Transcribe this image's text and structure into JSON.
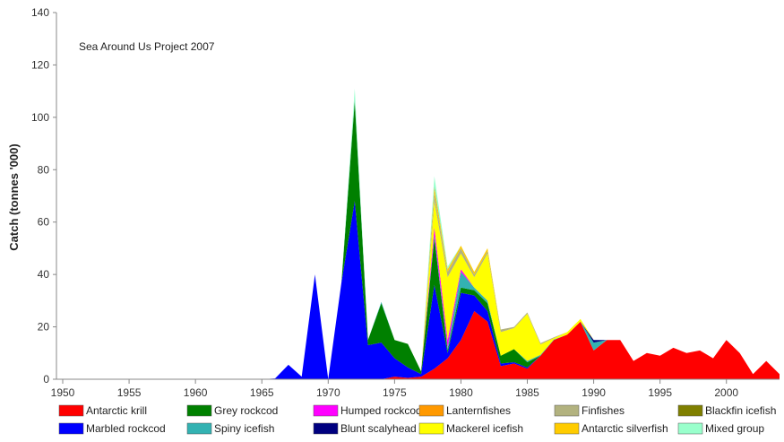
{
  "chart_data": {
    "type": "area",
    "stacked": true,
    "annotation": "Sea Around Us Project 2007",
    "xlabel": "",
    "ylabel": "Catch (tonnes '000)",
    "xlim": [
      1950,
      2004
    ],
    "ylim": [
      0,
      140
    ],
    "xticks": [
      1950,
      1955,
      1960,
      1965,
      1970,
      1975,
      1980,
      1985,
      1990,
      1995,
      2000
    ],
    "yticks": [
      0,
      20,
      40,
      60,
      80,
      100,
      120,
      140
    ],
    "grid": false,
    "legend_position": "bottom",
    "x": [
      1950,
      1951,
      1952,
      1953,
      1954,
      1955,
      1956,
      1957,
      1958,
      1959,
      1960,
      1961,
      1962,
      1963,
      1964,
      1965,
      1966,
      1967,
      1968,
      1969,
      1970,
      1971,
      1972,
      1973,
      1974,
      1975,
      1976,
      1977,
      1978,
      1979,
      1980,
      1981,
      1982,
      1983,
      1984,
      1985,
      1986,
      1987,
      1988,
      1989,
      1990,
      1991,
      1992,
      1993,
      1994,
      1995,
      1996,
      1997,
      1998,
      1999,
      2000,
      2001,
      2002,
      2003,
      2004
    ],
    "series": [
      {
        "name": "Antarctic krill",
        "color": "#ff0000",
        "values": [
          0,
          0,
          0,
          0,
          0,
          0,
          0,
          0,
          0,
          0,
          0,
          0,
          0,
          0,
          0,
          0,
          0,
          0,
          0,
          0,
          0,
          0,
          0,
          0,
          0,
          1,
          0.5,
          1,
          4,
          8,
          15,
          26,
          22,
          5,
          6,
          4,
          9,
          15,
          17,
          22,
          11,
          15,
          15,
          7,
          10,
          9,
          12,
          10,
          11,
          8,
          15,
          10,
          2,
          7,
          2
        ]
      },
      {
        "name": "Marbled rockcod",
        "color": "#0000ff",
        "values": [
          0,
          0,
          0,
          0,
          0,
          0,
          0,
          0,
          0,
          0,
          0,
          0,
          0,
          0,
          0,
          0,
          0.3,
          5.5,
          1,
          40,
          0,
          37,
          68,
          13,
          14,
          7,
          4,
          1,
          32,
          2,
          18,
          6,
          4,
          1,
          0.5,
          0.5,
          0,
          0,
          0,
          0,
          0,
          0,
          0,
          0,
          0,
          0,
          0,
          0,
          0,
          0,
          0,
          0,
          0,
          0,
          0
        ]
      },
      {
        "name": "Grey rockcod",
        "color": "#008000",
        "values": [
          0,
          0,
          0,
          0,
          0,
          0,
          0,
          0,
          0,
          0,
          0,
          0,
          0,
          0,
          0,
          0,
          0,
          0,
          0,
          0,
          0,
          0,
          38,
          2,
          15,
          7,
          9,
          1,
          18,
          1,
          2,
          2,
          3,
          3,
          5,
          2,
          0,
          0,
          0,
          0,
          0,
          0,
          0,
          0,
          0,
          0,
          0,
          0,
          0,
          0,
          0,
          0,
          0,
          0,
          0
        ]
      },
      {
        "name": "Spiny icefish",
        "color": "#33b2b2",
        "values": [
          0,
          0,
          0,
          0,
          0,
          0,
          0,
          0,
          0,
          0,
          0,
          0,
          0,
          0,
          0,
          0,
          0,
          0,
          0,
          0,
          0,
          0,
          0.5,
          0,
          0.5,
          0,
          0,
          0,
          1,
          1,
          6,
          1,
          1,
          0,
          0,
          0.5,
          0.3,
          0.2,
          0,
          0,
          3,
          0,
          0,
          0,
          0,
          0,
          0,
          0,
          0,
          0,
          0,
          0,
          0,
          0,
          0
        ]
      },
      {
        "name": "Humped rockcod",
        "color": "#ff00ff",
        "values": [
          0,
          0,
          0,
          0,
          0,
          0,
          0,
          0,
          0,
          0,
          0,
          0,
          0,
          0,
          0,
          0,
          0,
          0,
          0,
          0,
          0,
          0,
          0,
          0,
          0,
          0,
          0,
          0,
          3,
          3,
          1,
          0,
          0,
          0,
          0,
          0,
          0,
          0,
          0,
          0,
          0,
          0,
          0,
          0,
          0,
          0,
          0,
          0,
          0,
          0,
          0,
          0,
          0,
          0,
          0
        ]
      },
      {
        "name": "Blunt scalyhead",
        "color": "#00007f",
        "values": [
          0,
          0,
          0,
          0,
          0,
          0,
          0,
          0,
          0,
          0,
          0,
          0,
          0,
          0,
          0,
          0,
          0,
          0,
          0,
          0,
          0,
          0,
          0,
          0,
          0,
          0,
          0,
          0,
          0,
          0,
          0,
          0,
          0,
          0,
          0,
          0,
          0,
          0,
          0,
          0,
          1,
          0,
          0,
          0,
          0,
          0,
          0,
          0,
          0,
          0,
          0,
          0,
          0,
          0,
          0
        ]
      },
      {
        "name": "Lanternfishes",
        "color": "#ff9900",
        "values": [
          0,
          0,
          0,
          0,
          0,
          0,
          0,
          0,
          0,
          0,
          0,
          0,
          0,
          0,
          0,
          0,
          0,
          0,
          0,
          0,
          0,
          0,
          0,
          0,
          0,
          0,
          0,
          0,
          0,
          0,
          0,
          0,
          0,
          0,
          0,
          0,
          0,
          0,
          0,
          0,
          0,
          0,
          0,
          0,
          0,
          0,
          0,
          0,
          0,
          0,
          0,
          0,
          0,
          0,
          0
        ]
      },
      {
        "name": "Mackerel icefish",
        "color": "#ffff00",
        "values": [
          0,
          0,
          0,
          0,
          0,
          0,
          0,
          0,
          0,
          0,
          0,
          0,
          0,
          0,
          0,
          0,
          0,
          0,
          0,
          0,
          0,
          0,
          0,
          0,
          0,
          0,
          0,
          0,
          10,
          24,
          6,
          4,
          18,
          9,
          8,
          18,
          4,
          0.5,
          1,
          1,
          0,
          0,
          0,
          0,
          0,
          0,
          0,
          0,
          0,
          0,
          0,
          0,
          0,
          0,
          0
        ]
      },
      {
        "name": "Finfishes",
        "color": "#b2b27f",
        "values": [
          0,
          0,
          0,
          0,
          0,
          0,
          0,
          0,
          0,
          0,
          0,
          0,
          0,
          0,
          0,
          0,
          0,
          0,
          0,
          0,
          0,
          0,
          0.5,
          0,
          0,
          0,
          0,
          0,
          3,
          2,
          2,
          1,
          1,
          1,
          0.5,
          0.5,
          0.5,
          0.3,
          0,
          0,
          0,
          0,
          0,
          0,
          0,
          0,
          0,
          0,
          0,
          0,
          0,
          0,
          0,
          0,
          0
        ]
      },
      {
        "name": "Antarctic silverfish",
        "color": "#ffcc00",
        "values": [
          0,
          0,
          0,
          0,
          0,
          0,
          0,
          0,
          0,
          0,
          0,
          0,
          0,
          0,
          0,
          0,
          0,
          0,
          0,
          0,
          0,
          0,
          0,
          0,
          0,
          0,
          0,
          0,
          2,
          1,
          1,
          1,
          1,
          0,
          0,
          0,
          0,
          0,
          0,
          0,
          0,
          0,
          0,
          0,
          0,
          0,
          0,
          0,
          0,
          0,
          0,
          0,
          0,
          0,
          0
        ]
      },
      {
        "name": "Blackfin icefish",
        "color": "#7f7f00",
        "values": [
          0,
          0,
          0,
          0,
          0,
          0,
          0,
          0,
          0,
          0,
          0,
          0,
          0,
          0,
          0,
          0,
          0,
          0,
          0,
          0,
          0,
          0,
          0,
          0,
          0,
          0,
          0,
          0,
          0.5,
          0,
          0,
          0,
          0,
          0,
          0,
          0,
          0,
          0,
          0,
          0,
          0,
          0,
          0,
          0,
          0,
          0,
          0,
          0,
          0,
          0,
          0,
          0,
          0,
          0,
          0
        ]
      },
      {
        "name": "Mixed group",
        "color": "#99ffcc",
        "values": [
          0,
          0,
          0,
          0,
          0,
          0,
          0,
          0,
          0,
          0,
          0,
          0,
          0,
          0,
          0,
          0,
          0,
          0,
          0,
          0,
          0,
          0,
          4,
          0,
          0,
          0,
          0,
          0,
          4,
          1,
          0,
          0,
          0,
          0,
          0,
          0,
          0,
          0,
          0,
          0,
          0,
          0,
          0,
          0,
          0,
          0,
          0,
          0,
          0,
          0,
          0,
          0,
          0,
          0,
          0
        ]
      }
    ]
  }
}
